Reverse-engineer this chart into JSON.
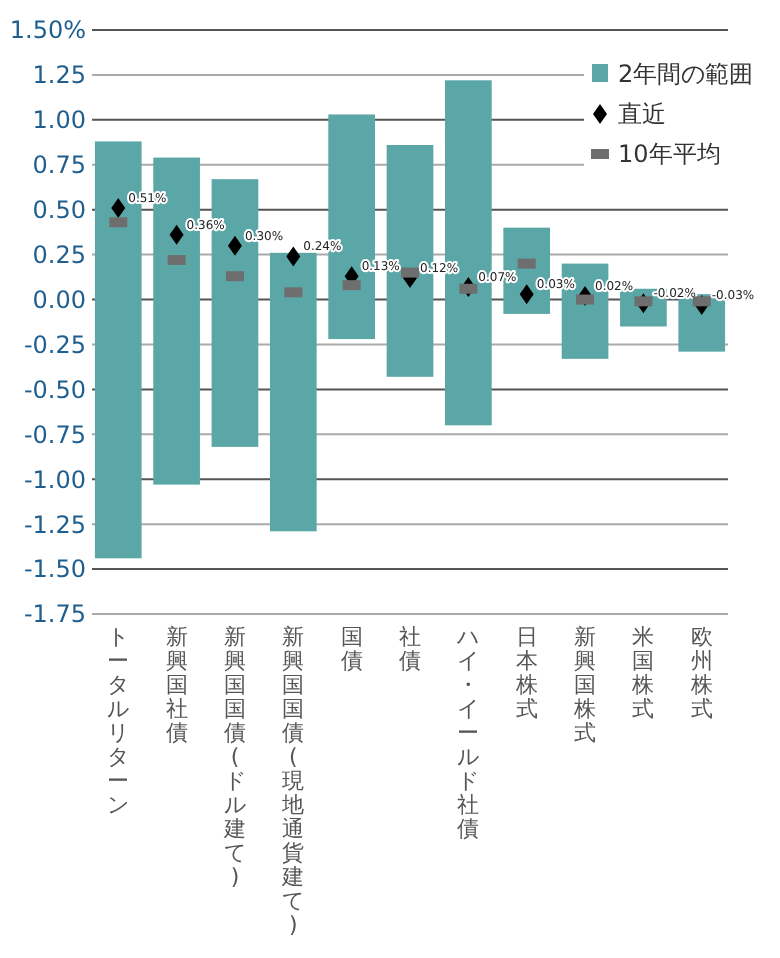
{
  "chart_data": {
    "type": "bar",
    "categories": [
      "トータルリターン",
      "新興国社債",
      "新興国国債(ドル建て)",
      "新興国国債(現地通貨建て)",
      "国債",
      "社債",
      "ハイ・イールド社債",
      "日本株式",
      "新興国株式",
      "米国株式",
      "欧州株式"
    ],
    "series": [
      {
        "name": "2年間の範囲",
        "color": "#5ba7a7",
        "base": [
          -1.44,
          -1.03,
          -0.82,
          -1.29,
          -0.22,
          -0.43,
          -0.7,
          -0.08,
          -0.33,
          -0.15,
          -0.29
        ],
        "values": [
          2.32,
          1.82,
          1.49,
          1.55,
          1.25,
          1.29,
          1.92,
          0.48,
          0.53,
          0.21,
          0.32
        ]
      },
      {
        "name": "直近",
        "type": "scatter",
        "marker": "diamond",
        "color": "#000000",
        "values": [
          0.51,
          0.36,
          0.3,
          0.24,
          0.13,
          0.12,
          0.07,
          0.03,
          0.02,
          -0.02,
          -0.03
        ],
        "value_labels": [
          "0.51%",
          "0.36%",
          "0.30%",
          "0.24%",
          "0.13%",
          "0.12%",
          "0.07%",
          "0.03%",
          "0.02%",
          "-0.02%",
          "-0.03%"
        ]
      },
      {
        "name": "10年平均",
        "type": "scatter",
        "marker": "square",
        "color": "#6e6e6e",
        "values": [
          0.43,
          0.22,
          0.13,
          0.04,
          0.08,
          0.15,
          0.06,
          0.2,
          0.0,
          -0.01,
          -0.01
        ]
      }
    ],
    "ylim": [
      -1.75,
      1.5
    ],
    "yticks": [
      {
        "value": -1.75,
        "label": "-1.75"
      },
      {
        "value": -1.5,
        "label": "-1.50"
      },
      {
        "value": -1.25,
        "label": "-1.25"
      },
      {
        "value": -1,
        "label": "-1.00"
      },
      {
        "value": -0.75,
        "label": "-0.75"
      },
      {
        "value": -0.5,
        "label": "-0.50"
      },
      {
        "value": -0.25,
        "label": "-0.25"
      },
      {
        "value": 0,
        "label": "0.00"
      },
      {
        "value": 0.25,
        "label": "0.25"
      },
      {
        "value": 0.5,
        "label": "0.50"
      },
      {
        "value": 0.75,
        "label": "0.75"
      },
      {
        "value": 1,
        "label": "1.00"
      },
      {
        "value": 1.25,
        "label": "1.25"
      },
      {
        "value": 1.5,
        "label": "1.50%"
      }
    ],
    "grid": "y",
    "legend": "top right"
  }
}
